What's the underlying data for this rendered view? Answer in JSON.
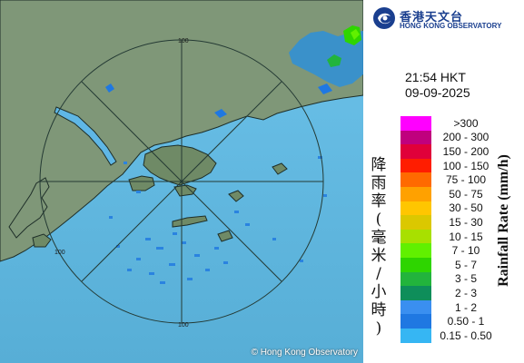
{
  "logo": {
    "name_zh": "香港天文台",
    "name_en": "HONG KONG OBSERVATORY"
  },
  "timestamp": {
    "time": "21:54 HKT",
    "date": "09-09-2025"
  },
  "map": {
    "range_ring_labels": [
      "100",
      "100",
      "100"
    ],
    "copyright": "© Hong Kong Observatory",
    "colors": {
      "sea": "#5fb7e6",
      "land": "#7f9778",
      "coast": "#1e2e28"
    }
  },
  "legend": {
    "label_zh": [
      "降",
      "雨",
      "率",
      "(",
      "毫",
      "米",
      "/",
      "小",
      "時",
      ")"
    ],
    "label_en": "Rainfall Rate (mm/h)",
    "items": [
      {
        "label": ">300",
        "color": "#ff00ff"
      },
      {
        "label": "200 - 300",
        "color": "#c0007e"
      },
      {
        "label": "150 - 200",
        "color": "#e0003a"
      },
      {
        "label": "100 - 150",
        "color": "#ff1d00"
      },
      {
        "label": "75 - 100",
        "color": "#ff6a00"
      },
      {
        "label": "50 - 75",
        "color": "#ffa100"
      },
      {
        "label": "30 - 50",
        "color": "#ffc600"
      },
      {
        "label": "15 - 30",
        "color": "#dbc800"
      },
      {
        "label": "10 - 15",
        "color": "#a8e000"
      },
      {
        "label": "7 - 10",
        "color": "#61f000"
      },
      {
        "label": "5 - 7",
        "color": "#2ed500"
      },
      {
        "label": "3 - 5",
        "color": "#22b43c"
      },
      {
        "label": "2 - 3",
        "color": "#0e8e5a"
      },
      {
        "label": "1 - 2",
        "color": "#3a8ff0"
      },
      {
        "label": "0.50 - 1",
        "color": "#1f78e2"
      },
      {
        "label": "0.15 - 0.50",
        "color": "#36b6f3"
      }
    ]
  }
}
